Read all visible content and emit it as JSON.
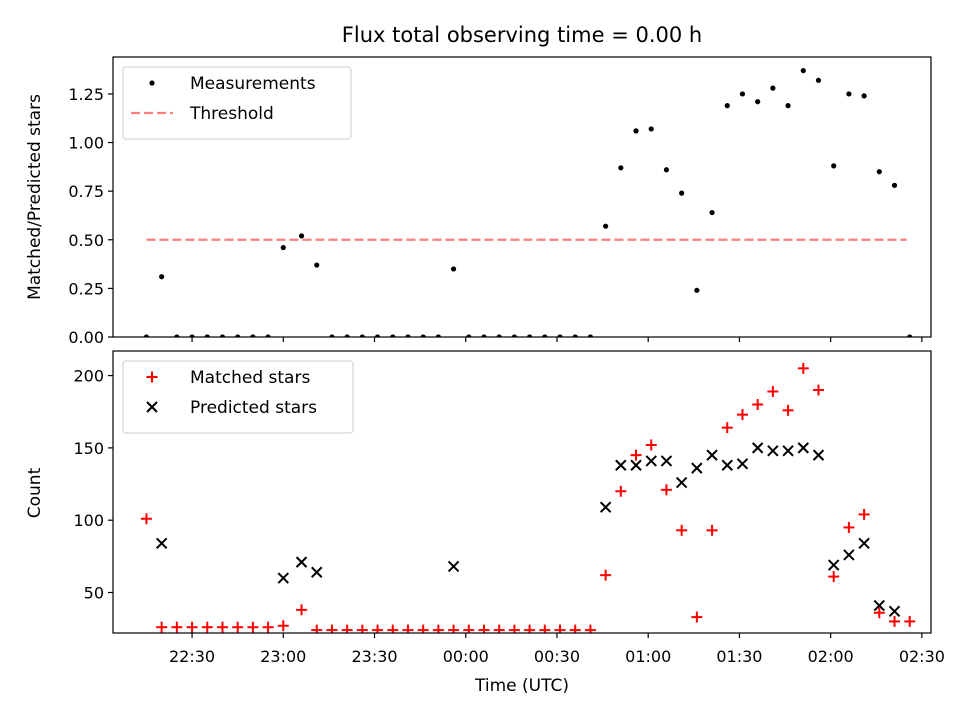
{
  "chart_data": [
    {
      "type": "scatter",
      "title": "Flux total observing time = 0.00 h",
      "xlabel": "",
      "ylabel": "Matched/Predicted stars",
      "ylim": [
        0,
        1.44
      ],
      "yticks": [
        0.0,
        0.25,
        0.5,
        0.75,
        1.0,
        1.25
      ],
      "ytick_labels": [
        "0.00",
        "0.25",
        "0.50",
        "0.75",
        "1.00",
        "1.25"
      ],
      "legend_position": "top-left",
      "series": [
        {
          "name": "Measurements",
          "style": "dot",
          "color": "#000000",
          "points": [
            [
              "22:15",
              0.0
            ],
            [
              "22:20",
              0.31
            ],
            [
              "22:25",
              0.0
            ],
            [
              "22:30",
              0.0
            ],
            [
              "22:35",
              0.0
            ],
            [
              "22:40",
              0.0
            ],
            [
              "22:45",
              0.0
            ],
            [
              "22:50",
              0.0
            ],
            [
              "22:55",
              0.0
            ],
            [
              "23:00",
              0.46
            ],
            [
              "23:06",
              0.52
            ],
            [
              "23:11",
              0.37
            ],
            [
              "23:16",
              0.0
            ],
            [
              "23:21",
              0.0
            ],
            [
              "23:26",
              0.0
            ],
            [
              "23:31",
              0.0
            ],
            [
              "23:36",
              0.0
            ],
            [
              "23:41",
              0.0
            ],
            [
              "23:46",
              0.0
            ],
            [
              "23:51",
              0.0
            ],
            [
              "23:56",
              0.35
            ],
            [
              "00:01",
              0.0
            ],
            [
              "00:06",
              0.0
            ],
            [
              "00:11",
              0.0
            ],
            [
              "00:16",
              0.0
            ],
            [
              "00:21",
              0.0
            ],
            [
              "00:26",
              0.0
            ],
            [
              "00:31",
              0.0
            ],
            [
              "00:36",
              0.0
            ],
            [
              "00:41",
              0.0
            ],
            [
              "00:46",
              0.57
            ],
            [
              "00:51",
              0.87
            ],
            [
              "00:56",
              1.06
            ],
            [
              "01:01",
              1.07
            ],
            [
              "01:06",
              0.86
            ],
            [
              "01:11",
              0.74
            ],
            [
              "01:16",
              0.24
            ],
            [
              "01:21",
              0.64
            ],
            [
              "01:26",
              1.19
            ],
            [
              "01:31",
              1.25
            ],
            [
              "01:36",
              1.21
            ],
            [
              "01:41",
              1.28
            ],
            [
              "01:46",
              1.19
            ],
            [
              "01:51",
              1.37
            ],
            [
              "01:56",
              1.32
            ],
            [
              "02:01",
              0.88
            ],
            [
              "02:06",
              1.25
            ],
            [
              "02:11",
              1.24
            ],
            [
              "02:16",
              0.85
            ],
            [
              "02:21",
              0.78
            ],
            [
              "02:26",
              0.0
            ]
          ]
        },
        {
          "name": "Threshold",
          "style": "dashed-line",
          "color": "#ff7f7f",
          "points": [
            [
              "22:15",
              0.5
            ],
            [
              "02:25",
              0.5
            ]
          ]
        }
      ]
    },
    {
      "type": "scatter",
      "title": "",
      "xlabel": "Time (UTC)",
      "ylabel": "Count",
      "ylim": [
        22,
        217
      ],
      "yticks": [
        50,
        100,
        150,
        200
      ],
      "ytick_labels": [
        "50",
        "100",
        "150",
        "200"
      ],
      "xlim": [
        "22:04",
        "02:33"
      ],
      "xticks": [
        "22:30",
        "23:00",
        "23:30",
        "00:00",
        "00:30",
        "01:00",
        "01:30",
        "02:00",
        "02:30"
      ],
      "legend_position": "top-left",
      "series": [
        {
          "name": "Matched stars",
          "style": "plus",
          "color": "#ff0000",
          "points": [
            [
              "22:15",
              101
            ],
            [
              "22:20",
              26
            ],
            [
              "22:25",
              26
            ],
            [
              "22:30",
              26
            ],
            [
              "22:35",
              26
            ],
            [
              "22:40",
              26
            ],
            [
              "22:45",
              26
            ],
            [
              "22:50",
              26
            ],
            [
              "22:55",
              26
            ],
            [
              "23:00",
              27
            ],
            [
              "23:06",
              38
            ],
            [
              "23:11",
              24
            ],
            [
              "23:16",
              24
            ],
            [
              "23:21",
              24
            ],
            [
              "23:26",
              24
            ],
            [
              "23:31",
              24
            ],
            [
              "23:36",
              24
            ],
            [
              "23:41",
              24
            ],
            [
              "23:46",
              24
            ],
            [
              "23:51",
              24
            ],
            [
              "23:56",
              24
            ],
            [
              "00:01",
              24
            ],
            [
              "00:06",
              24
            ],
            [
              "00:11",
              24
            ],
            [
              "00:16",
              24
            ],
            [
              "00:21",
              24
            ],
            [
              "00:26",
              24
            ],
            [
              "00:31",
              24
            ],
            [
              "00:36",
              24
            ],
            [
              "00:41",
              24
            ],
            [
              "00:46",
              62
            ],
            [
              "00:51",
              120
            ],
            [
              "00:56",
              145
            ],
            [
              "01:01",
              152
            ],
            [
              "01:06",
              121
            ],
            [
              "01:11",
              93
            ],
            [
              "01:16",
              33
            ],
            [
              "01:21",
              93
            ],
            [
              "01:26",
              164
            ],
            [
              "01:31",
              173
            ],
            [
              "01:36",
              180
            ],
            [
              "01:41",
              189
            ],
            [
              "01:46",
              176
            ],
            [
              "01:51",
              205
            ],
            [
              "01:56",
              190
            ],
            [
              "02:01",
              61
            ],
            [
              "02:06",
              95
            ],
            [
              "02:11",
              104
            ],
            [
              "02:16",
              36
            ],
            [
              "02:21",
              30
            ],
            [
              "02:26",
              30
            ]
          ]
        },
        {
          "name": "Predicted stars",
          "style": "x",
          "color": "#000000",
          "points": [
            [
              "22:20",
              84
            ],
            [
              "23:00",
              60
            ],
            [
              "23:06",
              71
            ],
            [
              "23:11",
              64
            ],
            [
              "23:56",
              68
            ],
            [
              "00:46",
              109
            ],
            [
              "00:51",
              138
            ],
            [
              "00:56",
              138
            ],
            [
              "01:01",
              141
            ],
            [
              "01:06",
              141
            ],
            [
              "01:11",
              126
            ],
            [
              "01:16",
              136
            ],
            [
              "01:21",
              145
            ],
            [
              "01:26",
              138
            ],
            [
              "01:31",
              139
            ],
            [
              "01:36",
              150
            ],
            [
              "01:41",
              148
            ],
            [
              "01:46",
              148
            ],
            [
              "01:51",
              150
            ],
            [
              "01:56",
              145
            ],
            [
              "02:01",
              69
            ],
            [
              "02:06",
              76
            ],
            [
              "02:11",
              84
            ],
            [
              "02:16",
              41
            ],
            [
              "02:21",
              37
            ]
          ]
        }
      ]
    }
  ]
}
